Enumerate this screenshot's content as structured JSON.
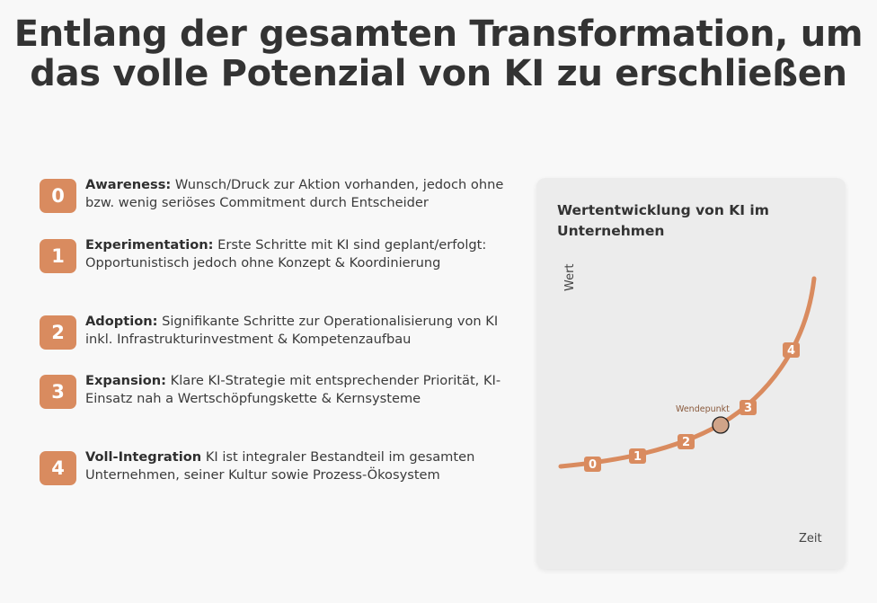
{
  "header": {
    "title_line1": "Entlang der gesamten Transformation, um",
    "title_line2": "das volle Potenzial von KI zu erschließen"
  },
  "colors": {
    "accent": "#d98b5f",
    "background": "#f8f8f8",
    "card": "#ececec",
    "text": "#333333"
  },
  "stages": [
    {
      "number": "0",
      "title": "Awareness:",
      "description": "Wunsch/Druck zur Aktion vorhanden, jedoch ohne bzw. wenig seriöses Commitment durch Entscheider"
    },
    {
      "number": "1",
      "title": "Experimentation:",
      "description": "Erste Schritte mit KI sind geplant/erfolgt: Opportunistisch jedoch ohne Konzept & Koordinierung"
    },
    {
      "number": "2",
      "title": "Adoption:",
      "description": "Signifikante Schritte zur Operationalisierung von KI inkl. Infrastrukturinvestment & Kompetenzaufbau"
    },
    {
      "number": "3",
      "title": "Expansion:",
      "description": "Klare KI-Strategie mit entsprechender Priorität, KI-Einsatz nah a Wertschöpfungskette & Kernsysteme"
    },
    {
      "number": "4",
      "title": "Voll-Integration",
      "description": "KI ist integraler Bestandteil im gesamten Unternehmen, seiner Kultur sowie Prozess-Ökosystem"
    }
  ],
  "chart": {
    "title": "Wertentwicklung von KI im Unternehmen",
    "y_label": "Wert",
    "x_label": "Zeit",
    "inflection_label": "Wendepunkt",
    "markers": [
      "0",
      "1",
      "2",
      "3",
      "4"
    ]
  }
}
